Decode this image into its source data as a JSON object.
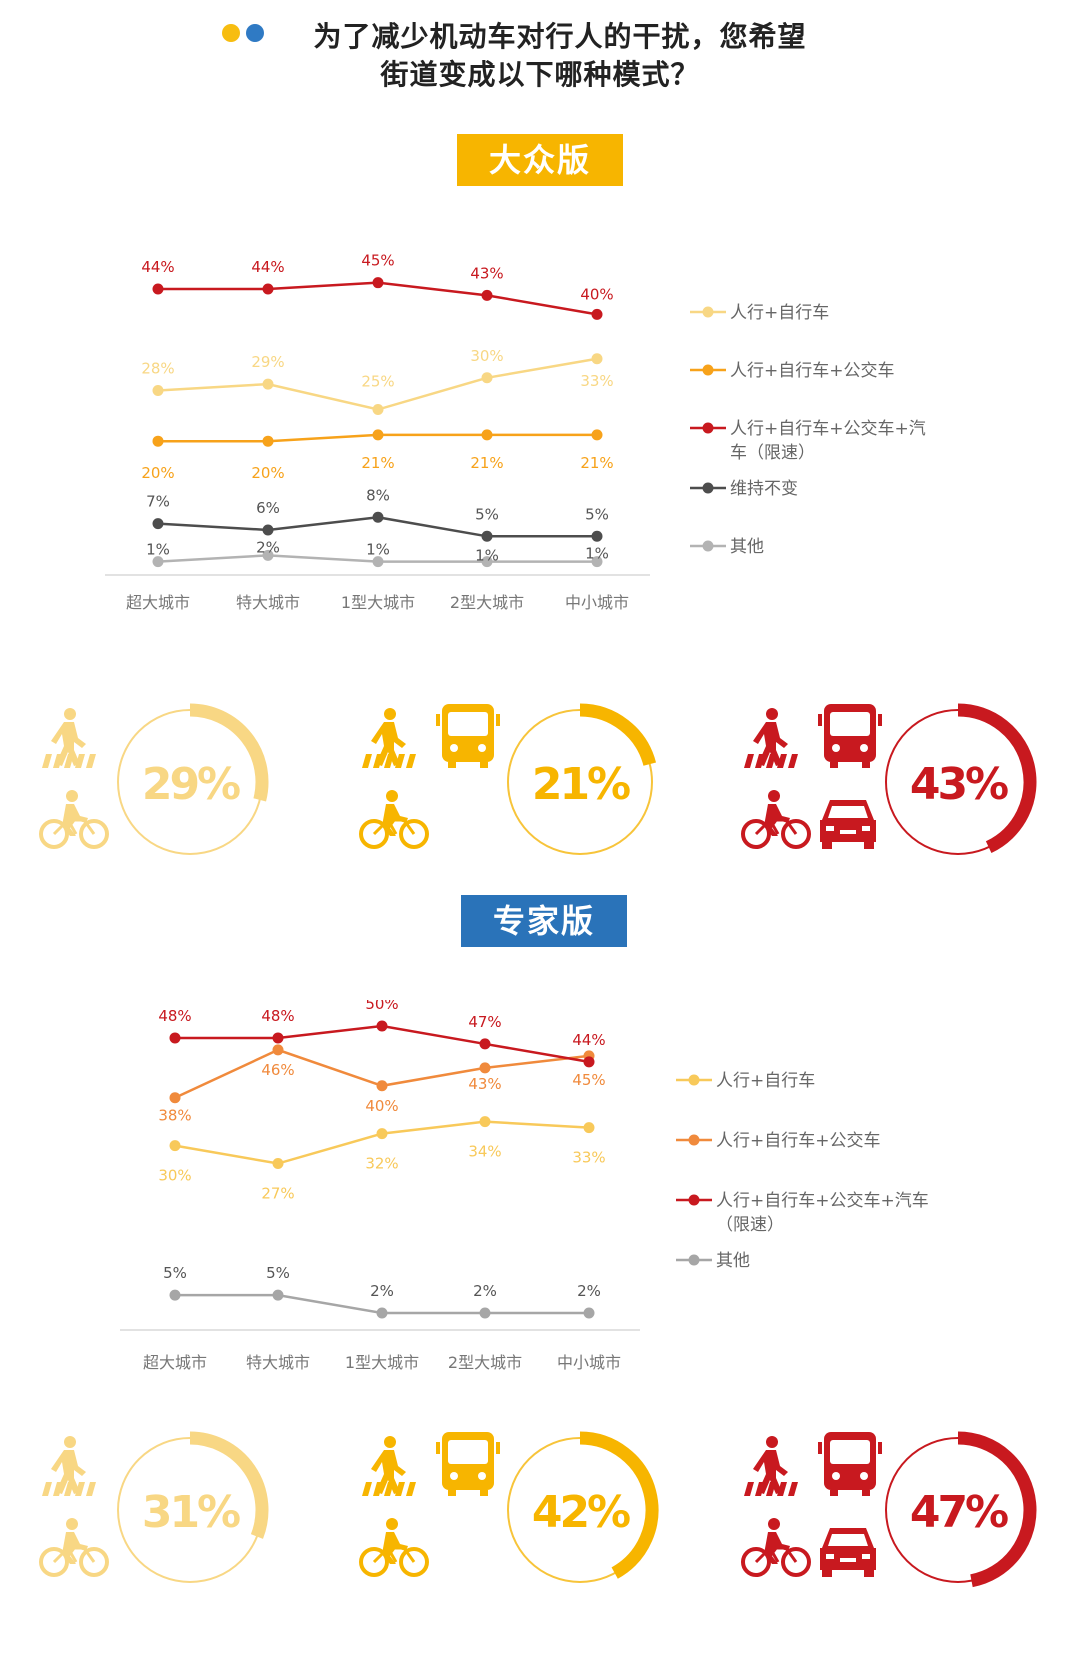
{
  "header": {
    "dot_colors": [
      "#f7bd10",
      "#2f7ac4"
    ],
    "title_line1": "为了减少机动车对行人的干扰，您希望",
    "title_line2": "街道变成以下哪种模式？"
  },
  "colors": {
    "light_yellow": "#f8d784",
    "yellow": "#f7b500",
    "orange": "#f08a1c",
    "red": "#c8191f",
    "dark_gray": "#4d4d4d",
    "light_gray": "#b3b3b3",
    "badge_public": "#f7b500",
    "badge_expert": "#2a73b9"
  },
  "sections": [
    {
      "badge": "大众版",
      "ring_values": [
        {
          "value": 0.29,
          "label": "29%",
          "icon_set": "pedestrian-bike"
        },
        {
          "value": 0.21,
          "label": "21%",
          "icon_set": "pedestrian-bus-bike"
        },
        {
          "value": 0.43,
          "label": "43%",
          "icon_set": "pedestrian-bus-bike-car"
        }
      ]
    },
    {
      "badge": "专家版",
      "ring_values": [
        {
          "value": 0.31,
          "label": "31%",
          "icon_set": "pedestrian-bike"
        },
        {
          "value": 0.42,
          "label": "42%",
          "icon_set": "pedestrian-bus-bike"
        },
        {
          "value": 0.47,
          "label": "47%",
          "icon_set": "pedestrian-bus-bike-car"
        }
      ]
    }
  ],
  "chart_data": [
    {
      "type": "line",
      "categories": [
        "超大城市",
        "特大城市",
        "1型大城市",
        "2型大城市",
        "中小城市"
      ],
      "series": [
        {
          "name": "人行+自行车",
          "color": "#f8d784",
          "values": [
            28,
            29,
            25,
            30,
            33
          ],
          "labels": [
            "28%",
            "29%",
            "25%",
            "30%",
            "33%"
          ]
        },
        {
          "name": "人行+自行车+公交车",
          "color": "#f7a21a",
          "values": [
            20,
            20,
            21,
            21,
            21
          ],
          "labels": [
            "20%",
            "20%",
            "21%",
            "21%",
            "21%"
          ]
        },
        {
          "name": "人行+自行车+公交车+汽车（限速）",
          "name_lines": [
            "人行+自行车+公交车+汽",
            "车（限速）"
          ],
          "color": "#c8191f",
          "values": [
            44,
            44,
            45,
            43,
            40
          ],
          "labels": [
            "44%",
            "44%",
            "45%",
            "43%",
            "40%"
          ]
        },
        {
          "name": "维持不变",
          "color": "#4d4d4d",
          "values": [
            7,
            6,
            8,
            5,
            5
          ],
          "labels": [
            "7%",
            "6%",
            "8%",
            "5%",
            "5%"
          ]
        },
        {
          "name": "其他",
          "color": "#b3b3b3",
          "values": [
            1,
            2,
            1,
            1,
            1
          ],
          "labels": [
            "1%",
            "2%",
            "1%",
            "1%",
            "1%"
          ]
        }
      ]
    },
    {
      "type": "line",
      "categories": [
        "超大城市",
        "特大城市",
        "1型大城市",
        "2型大城市",
        "中小城市"
      ],
      "series": [
        {
          "name": "人行+自行车",
          "color": "#f8c95a",
          "values": [
            30,
            27,
            32,
            34,
            33
          ],
          "labels": [
            "30%",
            "27%",
            "32%",
            "34%",
            "33%"
          ]
        },
        {
          "name": "人行+自行车+公交车",
          "color": "#f08a3c",
          "values": [
            38,
            46,
            40,
            43,
            45
          ],
          "labels": [
            "38%",
            "46%",
            "40%",
            "43%",
            "45%"
          ]
        },
        {
          "name": "人行+自行车+公交车+汽车（限速）",
          "name_lines": [
            "人行+自行车+公交车+汽车",
            "（限速）"
          ],
          "color": "#c8191f",
          "values": [
            48,
            48,
            50,
            47,
            44
          ],
          "labels": [
            "48%",
            "48%",
            "50%",
            "47%",
            "44%"
          ]
        },
        {
          "name": "其他",
          "color": "#a6a6a6",
          "values": [
            5,
            5,
            2,
            2,
            2
          ],
          "labels": [
            "5%",
            "5%",
            "2%",
            "2%",
            "2%"
          ]
        }
      ]
    }
  ]
}
